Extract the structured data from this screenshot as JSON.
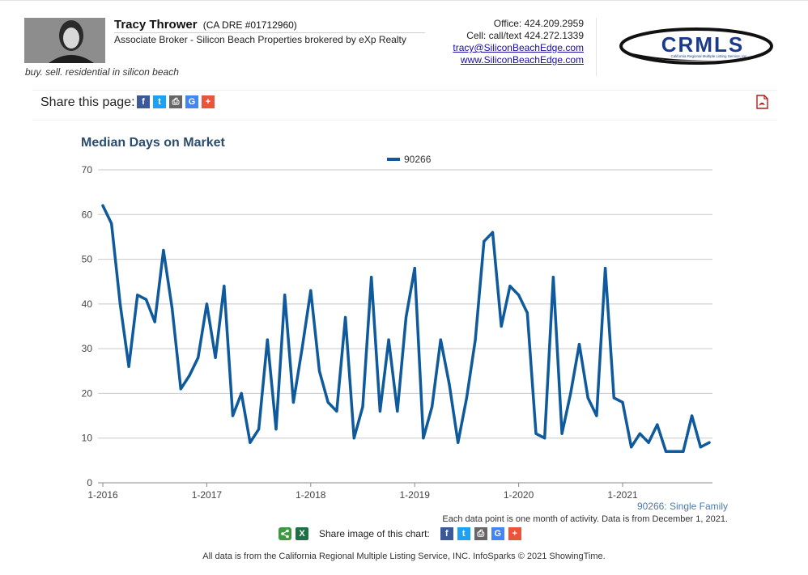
{
  "agent": {
    "name": "Tracy Thrower",
    "dre": "(CA DRE #01712960)",
    "title": "Associate Broker - Silicon Beach Properties brokered by eXp Realty",
    "tagline": "buy. sell. residential in silicon beach"
  },
  "contact": {
    "office": "Office: 424.209.2959",
    "cell": "Cell: call/text 424.272.1339",
    "email": "tracy@SiliconBeachEdge.com",
    "website": "www.SiliconBeachEdge.com"
  },
  "logo": {
    "text": "CRMLS",
    "subtext": "California Regional Multiple Listing Service, Inc."
  },
  "share_page": {
    "label": "Share this page:",
    "icons": [
      "facebook-icon",
      "twitter-icon",
      "print-icon",
      "google-icon",
      "plus-icon"
    ]
  },
  "chart_note": {
    "series_label": "90266: Single Family",
    "data_note": "Each data point is one month of activity. Data is from December 1, 2021."
  },
  "share_chart": {
    "label": "Share image of this chart:"
  },
  "footer": "All data is from the California Regional Multiple Listing Service, INC. InfoSparks © 2021 ShowingTime.",
  "colors": {
    "line": "#0e5a9c",
    "title": "#2c4c6e",
    "grid": "#c8c8c8"
  },
  "chart_data": {
    "type": "line",
    "title": "Median Days on Market",
    "xlabel": "",
    "ylabel": "",
    "ylim": [
      0,
      70
    ],
    "yticks": [
      0,
      10,
      20,
      30,
      40,
      50,
      60,
      70
    ],
    "x_tick_labels": [
      "1-2016",
      "1-2017",
      "1-2018",
      "1-2019",
      "1-2020",
      "1-2021"
    ],
    "x_start": "2016-01",
    "x_end": "2021-11",
    "legend": "top-center",
    "grid": true,
    "series": [
      {
        "name": "90266",
        "x": [
          "2016-01",
          "2016-02",
          "2016-03",
          "2016-04",
          "2016-05",
          "2016-06",
          "2016-07",
          "2016-08",
          "2016-09",
          "2016-10",
          "2016-11",
          "2016-12",
          "2017-01",
          "2017-02",
          "2017-03",
          "2017-04",
          "2017-05",
          "2017-06",
          "2017-07",
          "2017-08",
          "2017-09",
          "2017-10",
          "2017-11",
          "2017-12",
          "2018-01",
          "2018-02",
          "2018-03",
          "2018-04",
          "2018-05",
          "2018-06",
          "2018-07",
          "2018-08",
          "2018-09",
          "2018-10",
          "2018-11",
          "2018-12",
          "2019-01",
          "2019-02",
          "2019-03",
          "2019-04",
          "2019-05",
          "2019-06",
          "2019-07",
          "2019-08",
          "2019-09",
          "2019-10",
          "2019-11",
          "2019-12",
          "2020-01",
          "2020-02",
          "2020-03",
          "2020-04",
          "2020-05",
          "2020-06",
          "2020-07",
          "2020-08",
          "2020-09",
          "2020-10",
          "2020-11",
          "2020-12",
          "2021-01",
          "2021-02",
          "2021-03",
          "2021-04",
          "2021-05",
          "2021-06",
          "2021-07",
          "2021-08",
          "2021-09",
          "2021-10",
          "2021-11"
        ],
        "values": [
          62,
          58,
          40,
          26,
          42,
          41,
          36,
          52,
          39,
          21,
          24,
          28,
          40,
          28,
          44,
          15,
          20,
          9,
          12,
          32,
          12,
          42,
          18,
          30,
          43,
          25,
          18,
          16,
          37,
          10,
          17,
          46,
          16,
          32,
          16,
          37,
          48,
          10,
          17,
          32,
          22,
          9,
          19,
          32,
          54,
          56,
          35,
          44,
          42,
          38,
          11,
          10,
          46,
          11,
          20,
          31,
          19,
          15,
          48,
          19,
          18,
          8,
          11,
          9,
          13,
          7,
          7,
          7,
          15,
          8,
          9
        ]
      }
    ]
  }
}
